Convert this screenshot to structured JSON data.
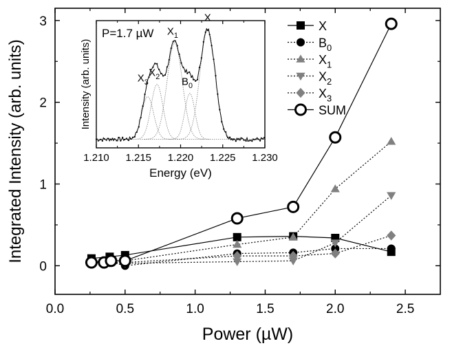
{
  "chart_data": [
    {
      "type": "scatter",
      "xlabel": "Power (µW)",
      "ylabel": "Integrated Intensity (arb. units)",
      "xlim": [
        0.0,
        2.75
      ],
      "ylim": [
        -0.35,
        3.15
      ],
      "xticks": [
        "0.0",
        "0.5",
        "1.0",
        "1.5",
        "2.0",
        "2.5"
      ],
      "yticks": [
        "0",
        "1",
        "2",
        "3"
      ],
      "legend_position": "top-right",
      "series": [
        {
          "name": "X",
          "sub": "",
          "marker": "square",
          "fill": "#000000",
          "line": "solid",
          "x": [
            0.26,
            0.39,
            0.5,
            1.3,
            1.7,
            2.0,
            2.4
          ],
          "y": [
            0.09,
            0.11,
            0.13,
            0.35,
            0.36,
            0.34,
            0.17
          ]
        },
        {
          "name": "B",
          "sub": "0",
          "marker": "circle",
          "fill": "#000000",
          "line": "dotted",
          "x": [
            0.26,
            0.39,
            0.5,
            1.3,
            1.7,
            2.0,
            2.4
          ],
          "y": [
            0.05,
            0.05,
            0.0,
            0.15,
            0.16,
            0.21,
            0.21
          ]
        },
        {
          "name": "X",
          "sub": "1",
          "marker": "triangle-up",
          "fill": "#808080",
          "line": "dotted",
          "x": [
            0.26,
            0.39,
            0.5,
            1.3,
            1.7,
            2.0,
            2.4
          ],
          "y": [
            0.05,
            0.06,
            0.06,
            0.26,
            0.35,
            0.94,
            1.52
          ]
        },
        {
          "name": "X",
          "sub": "2",
          "marker": "triangle-down",
          "fill": "#808080",
          "line": "dotted",
          "x": [
            0.26,
            0.39,
            0.5,
            1.3,
            1.7,
            2.0,
            2.4
          ],
          "y": [
            0.04,
            0.04,
            0.03,
            0.05,
            0.06,
            0.28,
            0.86
          ]
        },
        {
          "name": "X",
          "sub": "3",
          "marker": "diamond",
          "fill": "#808080",
          "line": "dotted",
          "x": [
            0.26,
            0.39,
            0.5,
            1.3,
            1.7,
            2.0,
            2.4
          ],
          "y": [
            0.04,
            0.04,
            0.04,
            0.12,
            0.12,
            0.15,
            0.37
          ]
        },
        {
          "name": "SUM",
          "sub": "",
          "marker": "open-circle",
          "fill": "none",
          "line": "solid",
          "x": [
            0.26,
            0.35,
            0.4,
            0.5,
            1.3,
            1.7,
            2.0,
            2.4
          ],
          "y": [
            0.04,
            0.04,
            0.06,
            0.06,
            0.58,
            0.72,
            1.57,
            2.96
          ]
        }
      ]
    },
    {
      "type": "line",
      "title": "P=1.7 µW",
      "xlabel": "Energy (eV)",
      "ylabel": "Intensity (arb. units)",
      "xlim": [
        1.21,
        1.23
      ],
      "ylim": [
        0,
        1.0
      ],
      "xticks": [
        "1.210",
        "1.215",
        "1.220",
        "1.225",
        "1.230"
      ],
      "peaks": [
        {
          "name": "X",
          "sub": "3",
          "center": 1.2161,
          "width": 0.0007,
          "height": 0.38
        },
        {
          "name": "X",
          "sub": "2",
          "center": 1.2172,
          "width": 0.0007,
          "height": 0.49
        },
        {
          "name": "X",
          "sub": "1",
          "center": 1.2193,
          "width": 0.0009,
          "height": 0.86
        },
        {
          "name": "B",
          "sub": "0",
          "center": 1.2211,
          "width": 0.0006,
          "height": 0.41
        },
        {
          "name": "X",
          "sub": "",
          "center": 1.2232,
          "width": 0.0009,
          "height": 0.98
        }
      ]
    }
  ]
}
